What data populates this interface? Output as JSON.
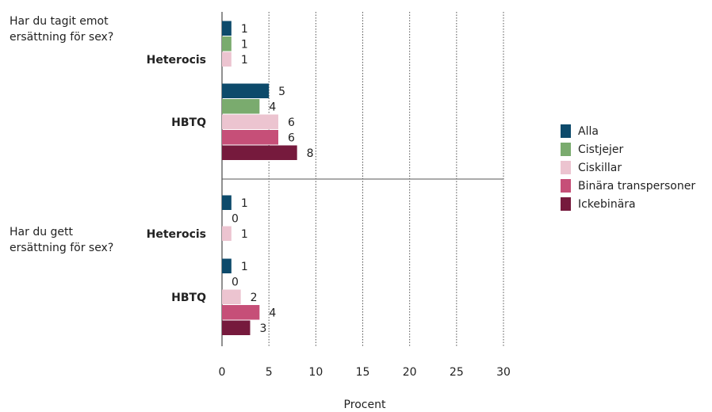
{
  "chart_data": {
    "type": "bar",
    "orientation": "horizontal",
    "xlabel": "Procent",
    "xlim": [
      0,
      30
    ],
    "xticks": [
      "0",
      "5",
      "10",
      "15",
      "20",
      "25",
      "30"
    ],
    "grid": "vertical dotted",
    "legend_position": "right",
    "series": [
      {
        "name": "Alla",
        "color": "#0d4a6b"
      },
      {
        "name": "Cistjejer",
        "color": "#7aab6e"
      },
      {
        "name": "Ciskillar",
        "color": "#ecc4d0"
      },
      {
        "name": "Binära transpersoner",
        "color": "#c64f78"
      },
      {
        "name": "Ickebinära",
        "color": "#761a3d"
      }
    ],
    "panels": [
      {
        "question": "Har du tagit emot ersättning för sex?",
        "groups": [
          {
            "label": "Heterocis",
            "values": [
              1,
              1,
              1,
              null,
              null
            ]
          },
          {
            "label": "HBTQ",
            "values": [
              5,
              4,
              6,
              6,
              8
            ]
          }
        ]
      },
      {
        "question": "Har du gett ersättning för sex?",
        "groups": [
          {
            "label": "Heterocis",
            "values": [
              1,
              0,
              1,
              null,
              null
            ]
          },
          {
            "label": "HBTQ",
            "values": [
              1,
              0,
              2,
              4,
              3
            ]
          }
        ]
      }
    ]
  }
}
